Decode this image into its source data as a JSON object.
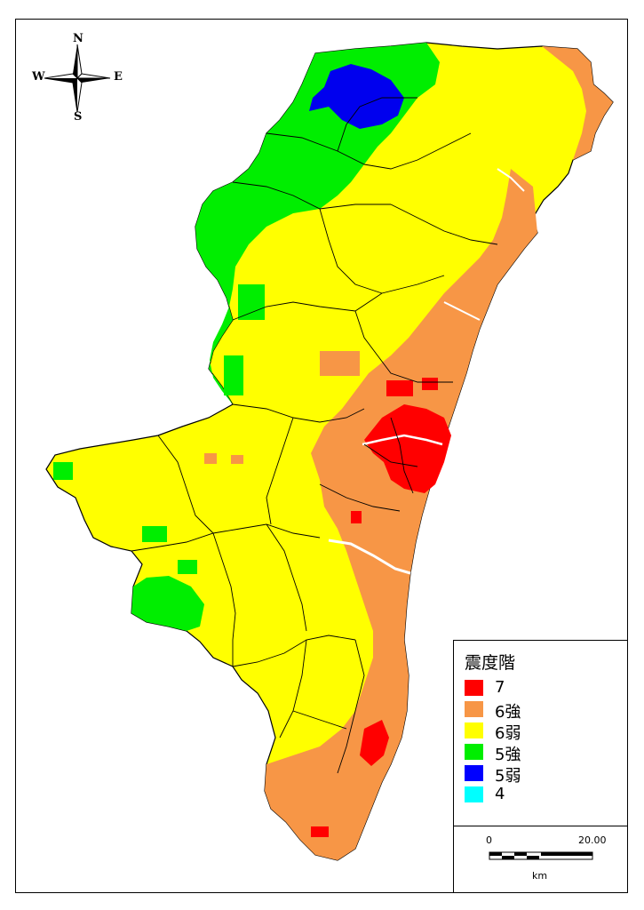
{
  "compass": {
    "north": "N",
    "south": "S",
    "east": "E",
    "west": "W"
  },
  "legend": {
    "title": "震度階",
    "items": [
      {
        "label": "7",
        "color": "#ff0000"
      },
      {
        "label": "6強",
        "color": "#f79646"
      },
      {
        "label": "6弱",
        "color": "#ffff00"
      },
      {
        "label": "5強",
        "color": "#00ee00"
      },
      {
        "label": "5弱",
        "color": "#0000ff"
      },
      {
        "label": "4",
        "color": "#00ffff"
      }
    ]
  },
  "scale_bar": {
    "start": "0",
    "end": "20.00",
    "unit": "km"
  },
  "colors": {
    "boundary": "#000000",
    "river": "#ffffff"
  }
}
